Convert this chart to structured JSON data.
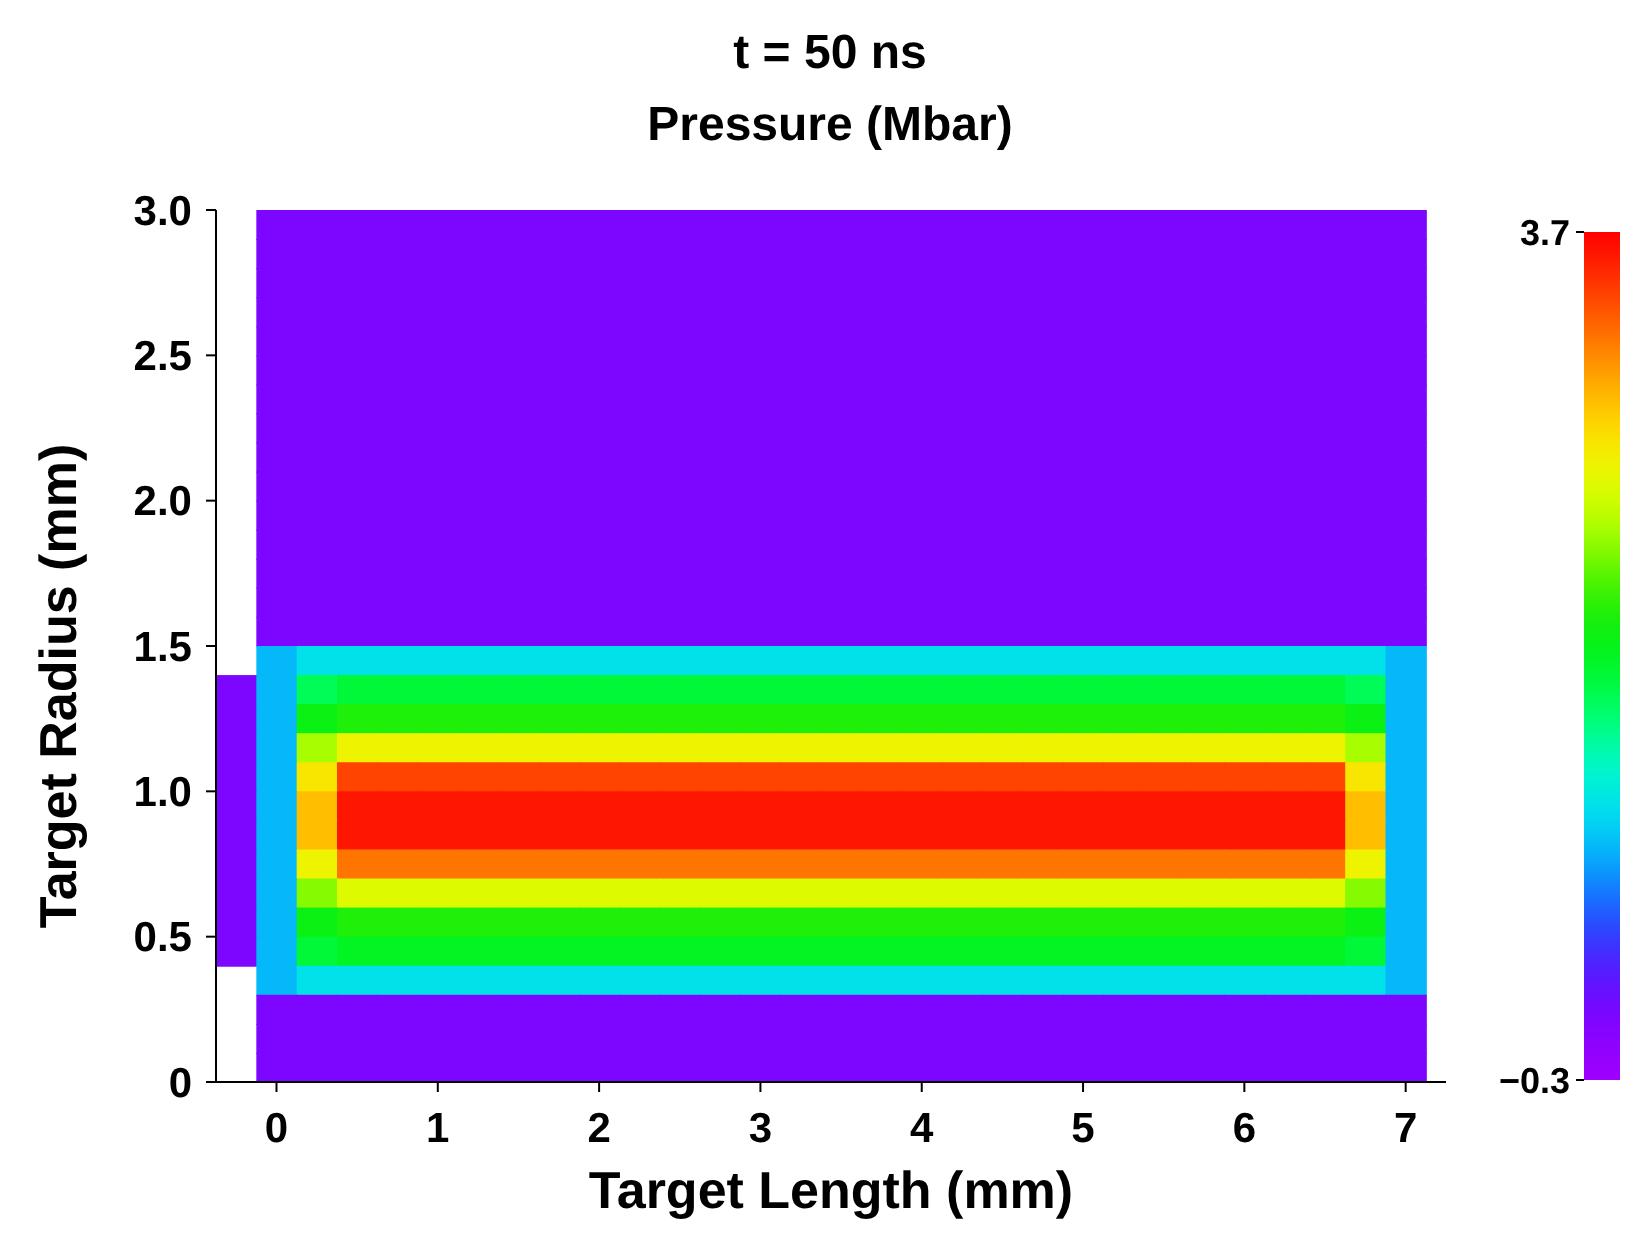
{
  "chart_data": {
    "type": "heatmap",
    "title": "t = 50 ns",
    "subtitle": "Pressure (Mbar)",
    "xlabel": "Target Length (mm)",
    "ylabel": "Target Radius (mm)",
    "x": [
      -0.25,
      0,
      0.25,
      0.5,
      0.75,
      1,
      1.25,
      1.5,
      1.75,
      2,
      2.25,
      2.5,
      2.75,
      3,
      3.25,
      3.5,
      3.75,
      4,
      4.25,
      4.5,
      4.75,
      5,
      5.25,
      5.5,
      5.75,
      6,
      6.25,
      6.5,
      6.75,
      7
    ],
    "y": [
      2.95,
      2.85,
      2.75,
      2.65,
      2.55,
      2.45,
      2.35,
      2.25,
      2.15,
      2.05,
      1.95,
      1.85,
      1.75,
      1.65,
      1.55,
      1.45,
      1.35,
      1.25,
      1.15,
      1.05,
      0.95,
      0.85,
      0.75,
      0.65,
      0.55,
      0.45,
      0.35,
      0.25,
      0.15,
      0.05
    ],
    "cells": [
      [
        null,
        0,
        0,
        0,
        0,
        0,
        0,
        0,
        0,
        0,
        0,
        0,
        0,
        0,
        0,
        0,
        0,
        0,
        0,
        0,
        0,
        0,
        0,
        0,
        0,
        0,
        0,
        0,
        0,
        0
      ],
      [
        null,
        0,
        0,
        0,
        0,
        0,
        0,
        0,
        0,
        0,
        0,
        0,
        0,
        0,
        0,
        0,
        0,
        0,
        0,
        0,
        0,
        0,
        0,
        0,
        0,
        0,
        0,
        0,
        0,
        0
      ],
      [
        null,
        0,
        0,
        0,
        0,
        0,
        0,
        0,
        0,
        0,
        0,
        0,
        0,
        0,
        0,
        0,
        0,
        0,
        0,
        0,
        0,
        0,
        0,
        0,
        0,
        0,
        0,
        0,
        0,
        0
      ],
      [
        null,
        0,
        0,
        0,
        0,
        0,
        0,
        0,
        0,
        0,
        0,
        0,
        0,
        0,
        0,
        0,
        0,
        0,
        0,
        0,
        0,
        0,
        0,
        0,
        0,
        0,
        0,
        0,
        0,
        0
      ],
      [
        null,
        0,
        0,
        0,
        0,
        0,
        0,
        0,
        0,
        0,
        0,
        0,
        0,
        0,
        0,
        0,
        0,
        0,
        0,
        0,
        0,
        0,
        0,
        0,
        0,
        0,
        0,
        0,
        0,
        0
      ],
      [
        null,
        0,
        0,
        0,
        0,
        0,
        0,
        0,
        0,
        0,
        0,
        0,
        0,
        0,
        0,
        0,
        0,
        0,
        0,
        0,
        0,
        0,
        0,
        0,
        0,
        0,
        0,
        0,
        0,
        0
      ],
      [
        null,
        0,
        0,
        0,
        0,
        0,
        0,
        0,
        0,
        0,
        0,
        0,
        0,
        0,
        0,
        0,
        0,
        0,
        0,
        0,
        0,
        0,
        0,
        0,
        0,
        0,
        0,
        0,
        0,
        0
      ],
      [
        null,
        0,
        0,
        0,
        0,
        0,
        0,
        0,
        0,
        0,
        0,
        0,
        0,
        0,
        0,
        0,
        0,
        0,
        0,
        0,
        0,
        0,
        0,
        0,
        0,
        0,
        0,
        0,
        0,
        0
      ],
      [
        null,
        0,
        0,
        0,
        0,
        0,
        0,
        0,
        0,
        0,
        0,
        0,
        0,
        0,
        0,
        0,
        0,
        0,
        0,
        0,
        0,
        0,
        0,
        0,
        0,
        0,
        0,
        0,
        0,
        0
      ],
      [
        null,
        0,
        0,
        0,
        0,
        0,
        0,
        0,
        0,
        0,
        0,
        0,
        0,
        0,
        0,
        0,
        0,
        0,
        0,
        0,
        0,
        0,
        0,
        0,
        0,
        0,
        0,
        0,
        0,
        0
      ],
      [
        null,
        0,
        0,
        0,
        0,
        0,
        0,
        0,
        0,
        0,
        0,
        0,
        0,
        0,
        0,
        0,
        0,
        0,
        0,
        0,
        0,
        0,
        0,
        0,
        0,
        0,
        0,
        0,
        0,
        0
      ],
      [
        null,
        0,
        0,
        0,
        0,
        0,
        0,
        0,
        0,
        0,
        0,
        0,
        0,
        0,
        0,
        0,
        0,
        0,
        0,
        0,
        0,
        0,
        0,
        0,
        0,
        0,
        0,
        0,
        0,
        0
      ],
      [
        null,
        0,
        0,
        0,
        0,
        0,
        0,
        0,
        0,
        0,
        0,
        0,
        0,
        0,
        0,
        0,
        0,
        0,
        0,
        0,
        0,
        0,
        0,
        0,
        0,
        0,
        0,
        0,
        0,
        0
      ],
      [
        null,
        0,
        0,
        0,
        0,
        0,
        0,
        0,
        0,
        0,
        0,
        0,
        0,
        0,
        0,
        0,
        0,
        0,
        0,
        0,
        0,
        0,
        0,
        0,
        0,
        0,
        0,
        0,
        0,
        0
      ],
      [
        null,
        0,
        0,
        0,
        0,
        0,
        0,
        0,
        0,
        0,
        0,
        0,
        0,
        0,
        0,
        0,
        0,
        0,
        0,
        0,
        0,
        0,
        0,
        0,
        0,
        0,
        0,
        0,
        0,
        0
      ],
      [
        null,
        0.8,
        1.0,
        1.0,
        1.0,
        1.0,
        1.0,
        1.0,
        1.0,
        1.0,
        1.0,
        1.0,
        1.0,
        1.0,
        1.0,
        1.0,
        1.0,
        1.0,
        1.0,
        1.0,
        1.0,
        1.0,
        1.0,
        1.0,
        1.0,
        1.0,
        1.0,
        1.0,
        1.0,
        0.8
      ],
      [
        0,
        0.8,
        1.5,
        1.6,
        1.6,
        1.6,
        1.6,
        1.6,
        1.6,
        1.6,
        1.6,
        1.6,
        1.6,
        1.6,
        1.6,
        1.6,
        1.6,
        1.6,
        1.6,
        1.6,
        1.6,
        1.6,
        1.6,
        1.6,
        1.6,
        1.6,
        1.6,
        1.6,
        1.5,
        0.8
      ],
      [
        0,
        0.8,
        1.8,
        1.9,
        1.9,
        1.9,
        1.9,
        1.9,
        1.9,
        1.9,
        1.9,
        1.9,
        1.9,
        1.9,
        1.9,
        1.9,
        1.9,
        1.9,
        1.9,
        1.9,
        1.9,
        1.9,
        1.9,
        1.9,
        1.9,
        1.9,
        1.9,
        1.9,
        1.8,
        0.8
      ],
      [
        0,
        0.8,
        2.3,
        2.6,
        2.6,
        2.6,
        2.6,
        2.6,
        2.6,
        2.6,
        2.6,
        2.6,
        2.6,
        2.6,
        2.6,
        2.6,
        2.6,
        2.6,
        2.6,
        2.6,
        2.6,
        2.6,
        2.6,
        2.6,
        2.6,
        2.6,
        2.6,
        2.6,
        2.3,
        0.8
      ],
      [
        0,
        0.8,
        2.7,
        3.4,
        3.4,
        3.4,
        3.4,
        3.4,
        3.4,
        3.4,
        3.4,
        3.4,
        3.4,
        3.4,
        3.4,
        3.4,
        3.4,
        3.4,
        3.4,
        3.4,
        3.4,
        3.4,
        3.4,
        3.4,
        3.4,
        3.4,
        3.4,
        3.4,
        2.7,
        0.8
      ],
      [
        0,
        0.8,
        2.9,
        3.6,
        3.6,
        3.6,
        3.6,
        3.6,
        3.6,
        3.6,
        3.6,
        3.6,
        3.6,
        3.6,
        3.6,
        3.6,
        3.6,
        3.6,
        3.6,
        3.6,
        3.6,
        3.6,
        3.6,
        3.6,
        3.6,
        3.6,
        3.6,
        3.6,
        2.9,
        0.8
      ],
      [
        0,
        0.8,
        2.9,
        3.6,
        3.6,
        3.6,
        3.6,
        3.6,
        3.6,
        3.6,
        3.6,
        3.6,
        3.6,
        3.6,
        3.6,
        3.6,
        3.6,
        3.6,
        3.6,
        3.6,
        3.6,
        3.6,
        3.6,
        3.6,
        3.6,
        3.6,
        3.6,
        3.6,
        2.9,
        0.8
      ],
      [
        0,
        0.8,
        2.6,
        3.2,
        3.2,
        3.2,
        3.2,
        3.2,
        3.2,
        3.2,
        3.2,
        3.2,
        3.2,
        3.2,
        3.2,
        3.2,
        3.2,
        3.2,
        3.2,
        3.2,
        3.2,
        3.2,
        3.2,
        3.2,
        3.2,
        3.2,
        3.2,
        3.2,
        2.6,
        0.8
      ],
      [
        0,
        0.8,
        2.2,
        2.5,
        2.5,
        2.5,
        2.5,
        2.5,
        2.5,
        2.5,
        2.5,
        2.5,
        2.5,
        2.5,
        2.5,
        2.5,
        2.5,
        2.5,
        2.5,
        2.5,
        2.5,
        2.5,
        2.5,
        2.5,
        2.5,
        2.5,
        2.5,
        2.5,
        2.2,
        0.8
      ],
      [
        0,
        0.8,
        1.8,
        1.9,
        1.9,
        1.9,
        1.9,
        1.9,
        1.9,
        1.9,
        1.9,
        1.9,
        1.9,
        1.9,
        1.9,
        1.9,
        1.9,
        1.9,
        1.9,
        1.9,
        1.9,
        1.9,
        1.9,
        1.9,
        1.9,
        1.9,
        1.9,
        1.9,
        1.8,
        0.8
      ],
      [
        0,
        0.8,
        1.6,
        1.7,
        1.7,
        1.7,
        1.7,
        1.7,
        1.7,
        1.7,
        1.7,
        1.7,
        1.7,
        1.7,
        1.7,
        1.7,
        1.7,
        1.7,
        1.7,
        1.7,
        1.7,
        1.7,
        1.7,
        1.7,
        1.7,
        1.7,
        1.7,
        1.7,
        1.6,
        0.8
      ],
      [
        null,
        0.8,
        1.0,
        1.0,
        1.0,
        1.0,
        1.0,
        1.0,
        1.0,
        1.0,
        1.0,
        1.0,
        1.0,
        1.0,
        1.0,
        1.0,
        1.0,
        1.0,
        1.0,
        1.0,
        1.0,
        1.0,
        1.0,
        1.0,
        1.0,
        1.0,
        1.0,
        1.0,
        1.0,
        0.8
      ],
      [
        null,
        0,
        0,
        0,
        0,
        0,
        0,
        0,
        0,
        0,
        0,
        0,
        0,
        0,
        0,
        0,
        0,
        0,
        0,
        0,
        0,
        0,
        0,
        0,
        0,
        0,
        0,
        0,
        0,
        0
      ],
      [
        null,
        0,
        0,
        0,
        0,
        0,
        0,
        0,
        0,
        0,
        0,
        0,
        0,
        0,
        0,
        0,
        0,
        0,
        0,
        0,
        0,
        0,
        0,
        0,
        0,
        0,
        0,
        0,
        0,
        0
      ],
      [
        null,
        0,
        0,
        0,
        0,
        0,
        0,
        0,
        0,
        0,
        0,
        0,
        0,
        0,
        0,
        0,
        0,
        0,
        0,
        0,
        0,
        0,
        0,
        0,
        0,
        0,
        0,
        0,
        0,
        0
      ]
    ],
    "xlim": [
      -0.375,
      7.25
    ],
    "ylim": [
      0,
      3
    ],
    "xticks": [
      0,
      1,
      2,
      3,
      4,
      5,
      6,
      7
    ],
    "yticks": [
      0,
      0.5,
      {
        "value": 1,
        "label": "1.0"
      },
      1.5,
      {
        "value": 2,
        "label": "2.0"
      },
      2.5,
      {
        "value": 3,
        "label": "3.0"
      }
    ],
    "clim": [
      -0.3,
      3.7
    ],
    "cticks": [
      {
        "value": -0.3,
        "label": "−0.3"
      },
      3.7
    ]
  }
}
